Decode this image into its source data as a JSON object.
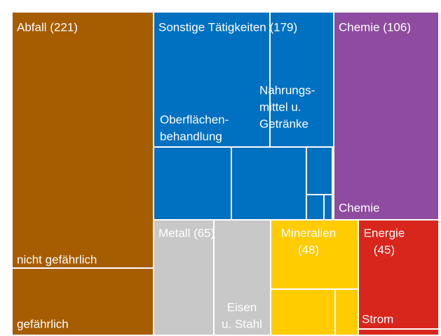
{
  "chart_data": {
    "type": "treemap",
    "groups": [
      {
        "label": [
          "Abfall (221)"
        ],
        "value": 221,
        "color": "#a65c00",
        "sublabels": [
          [
            "nicht gefährlich"
          ],
          [
            "gefährlich"
          ]
        ]
      },
      {
        "label": [
          "Sonstige Tätigkeiten (179)"
        ],
        "value": 179,
        "color": "#0070c0",
        "sublabels": [
          [
            "Oberflächen-",
            "behandlung"
          ],
          [
            "Nahrungs-",
            "mittel u.",
            "Getränke"
          ]
        ]
      },
      {
        "label": [
          "Chemie (106)"
        ],
        "value": 106,
        "color": "#8e4b9f",
        "sublabels": [
          [
            "Chemie"
          ]
        ]
      },
      {
        "label": [
          "Metall (65)"
        ],
        "value": 65,
        "color": "#c8c8c8",
        "sublabels": [
          [
            "Eisen",
            "u. Stahl"
          ]
        ]
      },
      {
        "label": [
          "Mineralien",
          "(48)"
        ],
        "value": 48,
        "color": "#ffcc00",
        "sublabels": []
      },
      {
        "label": [
          "Energie",
          "(45)"
        ],
        "value": 45,
        "color": "#d9261c",
        "sublabels": [
          [
            "Strom"
          ]
        ]
      }
    ]
  }
}
